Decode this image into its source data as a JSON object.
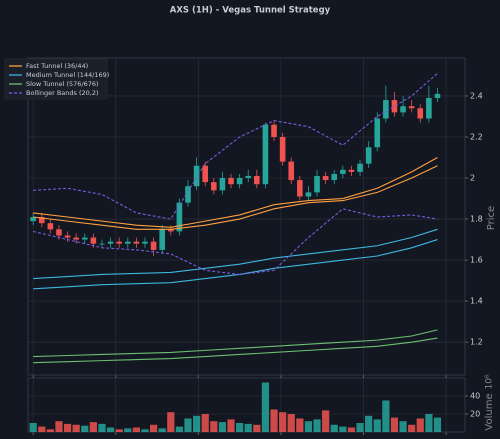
{
  "chart_data": [
    {
      "type": "candlestick",
      "title": "AXS (1H) - Vegas Tunnel Strategy",
      "ylabel": "Price",
      "open": [
        1.79,
        1.81,
        1.78,
        1.75,
        1.72,
        1.71,
        1.7,
        1.71,
        1.68,
        1.68,
        1.69,
        1.68,
        1.69,
        1.68,
        1.69,
        1.65,
        1.75,
        1.74,
        1.88,
        1.96,
        2.06,
        1.98,
        1.94,
        2.0,
        1.97,
        2.0,
        2.01,
        1.97,
        2.26,
        2.2,
        2.08,
        1.99,
        1.91,
        1.93,
        2.01,
        1.99,
        2.02,
        2.04,
        2.03,
        2.07,
        2.15,
        2.29,
        2.38,
        2.32,
        2.35,
        2.34,
        2.29,
        2.39
      ],
      "high": [
        1.83,
        1.83,
        1.8,
        1.77,
        1.74,
        1.73,
        1.73,
        1.73,
        1.7,
        1.71,
        1.71,
        1.71,
        1.71,
        1.71,
        1.71,
        1.77,
        1.77,
        1.9,
        1.99,
        2.1,
        2.08,
        2.0,
        2.03,
        2.02,
        2.02,
        2.04,
        2.04,
        2.27,
        2.28,
        2.22,
        2.1,
        2.01,
        1.96,
        2.04,
        2.03,
        2.04,
        2.06,
        2.06,
        2.09,
        2.18,
        2.32,
        2.45,
        2.42,
        2.4,
        2.38,
        2.36,
        2.45,
        2.44
      ],
      "low": [
        1.77,
        1.76,
        1.73,
        1.7,
        1.69,
        1.68,
        1.68,
        1.66,
        1.66,
        1.66,
        1.66,
        1.66,
        1.66,
        1.66,
        1.62,
        1.63,
        1.72,
        1.72,
        1.86,
        1.94,
        1.96,
        1.92,
        1.92,
        1.95,
        1.95,
        1.98,
        1.95,
        1.95,
        2.18,
        2.06,
        1.97,
        1.89,
        1.89,
        1.91,
        1.97,
        1.97,
        2.0,
        2.01,
        2.01,
        2.05,
        2.13,
        2.27,
        2.3,
        2.3,
        2.32,
        2.27,
        2.27,
        2.37
      ],
      "close": [
        1.81,
        1.78,
        1.75,
        1.72,
        1.71,
        1.7,
        1.71,
        1.68,
        1.68,
        1.69,
        1.68,
        1.69,
        1.68,
        1.69,
        1.65,
        1.75,
        1.74,
        1.88,
        1.96,
        2.06,
        1.98,
        1.94,
        2.0,
        1.97,
        2.0,
        2.01,
        1.97,
        2.26,
        2.2,
        2.08,
        1.99,
        1.91,
        1.93,
        2.01,
        1.99,
        2.02,
        2.04,
        2.03,
        2.07,
        2.15,
        2.29,
        2.38,
        2.32,
        2.35,
        2.34,
        2.29,
        2.39,
        2.41
      ],
      "up_color": "#26a69a",
      "down_color": "#ef5350",
      "xlim": [
        -0.6,
        50.2
      ],
      "xticks": [
        0,
        9.6,
        19.2,
        28.8,
        38.4,
        48
      ],
      "ylim": [
        1.04,
        2.585
      ],
      "yticks": [
        1.2,
        1.4,
        1.6,
        1.8,
        2.0,
        2.2,
        2.4
      ],
      "grid": true,
      "legend": "upper left",
      "series": [
        {
          "name": "Fast Tunnel (36/44)",
          "color": "#ffa040",
          "dash": false,
          "x": [
            0,
            4,
            8,
            12,
            16,
            20,
            24,
            28,
            32,
            36,
            40,
            44,
            47
          ],
          "upper": [
            1.83,
            1.81,
            1.79,
            1.77,
            1.76,
            1.79,
            1.82,
            1.87,
            1.89,
            1.9,
            1.95,
            2.03,
            2.1
          ],
          "lower": [
            1.81,
            1.79,
            1.77,
            1.75,
            1.75,
            1.77,
            1.8,
            1.85,
            1.88,
            1.89,
            1.93,
            2.0,
            2.06
          ]
        },
        {
          "name": "Medium Tunnel (144/169)",
          "color": "#3fb6e0",
          "dash": false,
          "x": [
            0,
            4,
            8,
            12,
            16,
            20,
            24,
            28,
            32,
            36,
            40,
            44,
            47
          ],
          "upper": [
            1.51,
            1.52,
            1.53,
            1.535,
            1.54,
            1.56,
            1.58,
            1.61,
            1.63,
            1.65,
            1.67,
            1.71,
            1.75
          ],
          "lower": [
            1.46,
            1.47,
            1.48,
            1.485,
            1.49,
            1.51,
            1.53,
            1.56,
            1.58,
            1.6,
            1.62,
            1.66,
            1.7
          ]
        },
        {
          "name": "Slow Tunnel (576/676)",
          "color": "#6cc070",
          "dash": false,
          "x": [
            0,
            4,
            8,
            12,
            16,
            20,
            24,
            28,
            32,
            36,
            40,
            44,
            47
          ],
          "upper": [
            1.13,
            1.135,
            1.14,
            1.145,
            1.15,
            1.16,
            1.17,
            1.18,
            1.19,
            1.2,
            1.21,
            1.23,
            1.26
          ],
          "lower": [
            1.1,
            1.105,
            1.11,
            1.115,
            1.12,
            1.13,
            1.14,
            1.15,
            1.16,
            1.17,
            1.18,
            1.2,
            1.22
          ]
        },
        {
          "name": "Bollinger Bands (20,2)",
          "color": "#7a5ce0",
          "dash": true,
          "x": [
            0,
            4,
            8,
            12,
            16,
            20,
            24,
            28,
            32,
            36,
            40,
            44,
            47
          ],
          "upper": [
            1.94,
            1.95,
            1.92,
            1.83,
            1.8,
            2.07,
            2.2,
            2.28,
            2.25,
            2.16,
            2.3,
            2.4,
            2.51
          ],
          "lower": [
            1.74,
            1.7,
            1.66,
            1.65,
            1.63,
            1.55,
            1.53,
            1.55,
            1.71,
            1.85,
            1.81,
            1.82,
            1.8
          ]
        }
      ]
    },
    {
      "type": "bar",
      "ylabel": "Volume",
      "scale_label": "10⁶",
      "values": [
        10,
        6,
        3,
        12,
        9,
        8,
        7,
        11,
        9,
        5,
        3,
        4,
        5,
        3,
        8,
        4,
        22,
        6,
        15,
        18,
        20,
        12,
        11,
        14,
        10,
        9,
        8,
        55,
        25,
        22,
        20,
        15,
        12,
        14,
        24,
        8,
        6,
        5,
        10,
        18,
        14,
        35,
        16,
        12,
        8,
        15,
        20,
        16
      ],
      "xlim": [
        -0.6,
        50.2
      ],
      "xticks": [
        0,
        9.6,
        19.2,
        28.8,
        38.4,
        48
      ],
      "ylim": [
        0,
        60
      ],
      "yticks": [
        20,
        40
      ],
      "grid": true
    }
  ]
}
